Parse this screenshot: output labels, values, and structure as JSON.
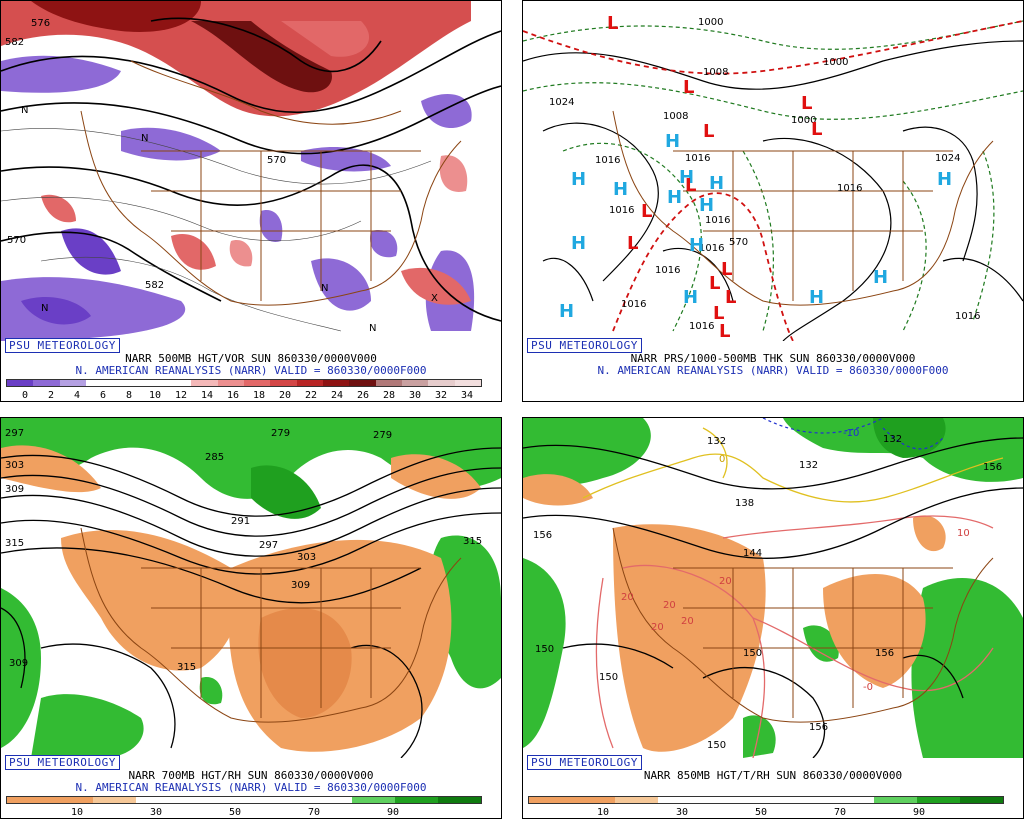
{
  "panels": [
    {
      "badge": "PSU METEOROLOGY",
      "caption1": "NARR 500MB HGT/VOR SUN 860330/0000V000",
      "caption2": "N. AMERICAN REANALYSIS (NARR) VALID = 860330/0000F000",
      "contour_labels": [
        "582",
        "576",
        "570",
        "582",
        "570",
        "N",
        "N",
        "N",
        "N",
        "N",
        "X"
      ],
      "colorbar_ticks": [
        "0",
        "2",
        "4",
        "6",
        "8",
        "10",
        "12",
        "14",
        "16",
        "18",
        "20",
        "22",
        "24",
        "26",
        "28",
        "30",
        "32",
        "34"
      ],
      "colorbar_colors": [
        "#6a3fc6",
        "#8e6ad6",
        "#b4a0e2",
        "#ffffff",
        "#ffffff",
        "#ffffff",
        "#ffffff",
        "#f4b8b8",
        "#ec8f8f",
        "#e26868",
        "#d34646",
        "#b82525",
        "#8e1313",
        "#6e1010",
        "#b07878",
        "#c9a0a0",
        "#e6cccc",
        "#f2dede"
      ]
    },
    {
      "badge": "PSU METEOROLOGY",
      "caption1": "NARR PRS/1000-500MB THK SUN 860330/0000V000",
      "caption2": "N. AMERICAN REANALYSIS (NARR) VALID = 860330/0000F000",
      "isobar_labels": [
        "1000",
        "1008",
        "1000",
        "1024",
        "1008",
        "1000",
        "1016",
        "1016",
        "1016",
        "1016",
        "1016",
        "1016",
        "1024",
        "1016",
        "570",
        "1016",
        "1016",
        "1016"
      ],
      "high_letter": "H",
      "low_letter": "L"
    },
    {
      "badge": "PSU METEOROLOGY",
      "caption1": "NARR 700MB HGT/RH SUN 860330/0000V000",
      "caption2": "N. AMERICAN REANALYSIS (NARR) VALID = 860330/0000F000",
      "contour_labels": [
        "297",
        "279",
        "279",
        "303",
        "285",
        "309",
        "291",
        "315",
        "297",
        "303",
        "309",
        "315",
        "309",
        "315"
      ],
      "colorbar_ticks": [
        "10",
        "30",
        "50",
        "70",
        "90"
      ],
      "colorbar_colors": [
        "#f0a060",
        "#f0a060",
        "#f6c898",
        "#ffffff",
        "#ffffff",
        "#ffffff",
        "#ffffff",
        "#ffffff",
        "#5fd05f",
        "#1fa01f",
        "#0f7a0f"
      ]
    },
    {
      "badge": "PSU METEOROLOGY",
      "caption1": "NARR 850MB HGT/T/RH SUN 860330/0000V000",
      "caption2": "",
      "contour_labels": [
        "132",
        "-10",
        "132",
        "0",
        "132",
        "138",
        "156",
        "10",
        "144",
        "20",
        "20",
        "20",
        "20",
        "20",
        "150",
        "156",
        "150",
        "156",
        "150",
        "156",
        "150",
        "-0"
      ],
      "colorbar_ticks": [
        "10",
        "30",
        "50",
        "70",
        "90"
      ],
      "colorbar_colors": [
        "#f0a060",
        "#f0a060",
        "#f6c898",
        "#ffffff",
        "#ffffff",
        "#ffffff",
        "#ffffff",
        "#ffffff",
        "#5fd05f",
        "#1fa01f",
        "#0f7a0f"
      ]
    }
  ]
}
